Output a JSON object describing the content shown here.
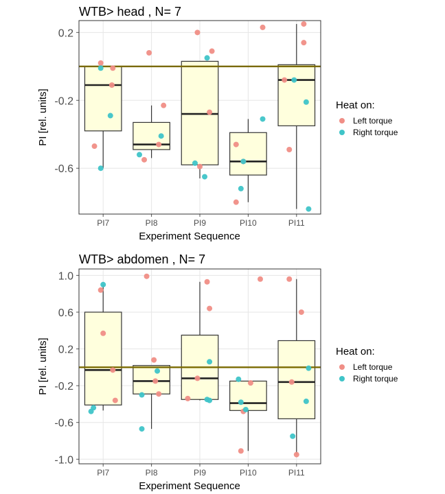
{
  "colors": {
    "left_torque": "#F08E86",
    "right_torque": "#3FC4C8",
    "box_fill": "#FFFFDD",
    "box_stroke": "#333333",
    "reference_line": "#7A6A00",
    "grid": "#E6E6E6"
  },
  "legend": {
    "title": "Heat on:",
    "items": [
      "Left torque",
      "Right torque"
    ]
  },
  "chart_data": [
    {
      "type": "box",
      "title": "WTB> head , N= 7",
      "xlabel": "Experiment Sequence",
      "ylabel": "PI [rel. units]",
      "categories": [
        "PI7",
        "PI8",
        "PI9",
        "PI10",
        "PI11"
      ],
      "ylim": [
        -0.87,
        0.27
      ],
      "yticks": [
        0.2,
        -0.2,
        -0.6
      ],
      "ytick_labels": [
        "0.2",
        "-0.2",
        "-0.6"
      ],
      "reference_line": 0,
      "grid": true,
      "legend_position": "right",
      "boxes": [
        {
          "category": "PI7",
          "whisker_low": -0.6,
          "q1": -0.38,
          "median": -0.11,
          "q3": 0.0,
          "whisker_high": 0.0
        },
        {
          "category": "PI8",
          "whisker_low": -0.54,
          "q1": -0.49,
          "median": -0.46,
          "q3": -0.33,
          "whisker_high": -0.23
        },
        {
          "category": "PI9",
          "whisker_low": -0.66,
          "q1": -0.58,
          "median": -0.28,
          "q3": 0.03,
          "whisker_high": 0.03
        },
        {
          "category": "PI10",
          "whisker_low": -0.8,
          "q1": -0.64,
          "median": -0.56,
          "q3": -0.39,
          "whisker_high": -0.31
        },
        {
          "category": "PI11",
          "whisker_low": -0.84,
          "q1": -0.35,
          "median": -0.08,
          "q3": 0.01,
          "whisker_high": 0.25
        }
      ],
      "points": [
        {
          "category": "PI7",
          "offset": -0.05,
          "value": 0.02,
          "series": "Left torque"
        },
        {
          "category": "PI7",
          "offset": 0.2,
          "value": -0.01,
          "series": "Left torque"
        },
        {
          "category": "PI7",
          "offset": 0.18,
          "value": -0.11,
          "series": "Left torque"
        },
        {
          "category": "PI7",
          "offset": -0.18,
          "value": -0.47,
          "series": "Left torque"
        },
        {
          "category": "PI7",
          "offset": -0.05,
          "value": -0.01,
          "series": "Right torque"
        },
        {
          "category": "PI7",
          "offset": 0.15,
          "value": -0.29,
          "series": "Right torque"
        },
        {
          "category": "PI7",
          "offset": -0.05,
          "value": -0.6,
          "series": "Right torque"
        },
        {
          "category": "PI8",
          "offset": -0.05,
          "value": 0.08,
          "series": "Left torque"
        },
        {
          "category": "PI8",
          "offset": 0.25,
          "value": -0.23,
          "series": "Left torque"
        },
        {
          "category": "PI8",
          "offset": 0.15,
          "value": -0.46,
          "series": "Left torque"
        },
        {
          "category": "PI8",
          "offset": -0.15,
          "value": -0.55,
          "series": "Left torque"
        },
        {
          "category": "PI8",
          "offset": 0.2,
          "value": -0.41,
          "series": "Right torque"
        },
        {
          "category": "PI8",
          "offset": -0.25,
          "value": -0.52,
          "series": "Right torque"
        },
        {
          "category": "PI9",
          "offset": -0.05,
          "value": 0.2,
          "series": "Left torque"
        },
        {
          "category": "PI9",
          "offset": 0.25,
          "value": 0.09,
          "series": "Left torque"
        },
        {
          "category": "PI9",
          "offset": 0.2,
          "value": -0.27,
          "series": "Left torque"
        },
        {
          "category": "PI9",
          "offset": 0.0,
          "value": -0.59,
          "series": "Left torque"
        },
        {
          "category": "PI9",
          "offset": 0.15,
          "value": 0.05,
          "series": "Right torque"
        },
        {
          "category": "PI9",
          "offset": -0.1,
          "value": -0.57,
          "series": "Right torque"
        },
        {
          "category": "PI9",
          "offset": 0.1,
          "value": -0.65,
          "series": "Right torque"
        },
        {
          "category": "PI10",
          "offset": 0.3,
          "value": 0.23,
          "series": "Left torque"
        },
        {
          "category": "PI10",
          "offset": -0.25,
          "value": -0.46,
          "series": "Left torque"
        },
        {
          "category": "PI10",
          "offset": -0.1,
          "value": -0.56,
          "series": "Left torque"
        },
        {
          "category": "PI10",
          "offset": -0.25,
          "value": -0.8,
          "series": "Left torque"
        },
        {
          "category": "PI10",
          "offset": 0.3,
          "value": -0.31,
          "series": "Right torque"
        },
        {
          "category": "PI10",
          "offset": -0.1,
          "value": -0.56,
          "series": "Right torque"
        },
        {
          "category": "PI10",
          "offset": -0.15,
          "value": -0.72,
          "series": "Right torque"
        },
        {
          "category": "PI11",
          "offset": 0.15,
          "value": 0.25,
          "series": "Left torque"
        },
        {
          "category": "PI11",
          "offset": 0.15,
          "value": 0.14,
          "series": "Left torque"
        },
        {
          "category": "PI11",
          "offset": -0.25,
          "value": -0.08,
          "series": "Left torque"
        },
        {
          "category": "PI11",
          "offset": -0.15,
          "value": -0.49,
          "series": "Left torque"
        },
        {
          "category": "PI11",
          "offset": -0.05,
          "value": -0.08,
          "series": "Right torque"
        },
        {
          "category": "PI11",
          "offset": 0.2,
          "value": -0.21,
          "series": "Right torque"
        },
        {
          "category": "PI11",
          "offset": 0.25,
          "value": -0.84,
          "series": "Right torque"
        }
      ]
    },
    {
      "type": "box",
      "title": "WTB> abdomen , N= 7",
      "xlabel": "Experiment Sequence",
      "ylabel": "PI [rel. units]",
      "categories": [
        "PI7",
        "PI8",
        "PI9",
        "PI10",
        "PI11"
      ],
      "ylim": [
        -1.05,
        1.07
      ],
      "yticks": [
        1.0,
        0.6,
        0.2,
        -0.2,
        -0.6,
        -1.0
      ],
      "ytick_labels": [
        "1.0",
        "0.6",
        "0.2",
        "-0.2",
        "-0.6",
        "-1.0"
      ],
      "reference_line": 0,
      "grid": true,
      "legend_position": "right",
      "boxes": [
        {
          "category": "PI7",
          "whisker_low": -0.47,
          "q1": -0.41,
          "median": -0.03,
          "q3": 0.6,
          "whisker_high": 0.9
        },
        {
          "category": "PI8",
          "whisker_low": -0.67,
          "q1": -0.29,
          "median": -0.15,
          "q3": 0.02,
          "whisker_high": 0.02
        },
        {
          "category": "PI9",
          "whisker_low": -0.36,
          "q1": -0.35,
          "median": -0.12,
          "q3": 0.35,
          "whisker_high": 0.93
        },
        {
          "category": "PI10",
          "whisker_low": -0.91,
          "q1": -0.47,
          "median": -0.39,
          "q3": -0.15,
          "whisker_high": -0.15
        },
        {
          "category": "PI11",
          "whisker_low": -0.95,
          "q1": -0.56,
          "median": -0.16,
          "q3": 0.29,
          "whisker_high": 0.96
        }
      ],
      "points": [
        {
          "category": "PI7",
          "offset": -0.05,
          "value": 0.84,
          "series": "Left torque"
        },
        {
          "category": "PI7",
          "offset": 0.0,
          "value": 0.37,
          "series": "Left torque"
        },
        {
          "category": "PI7",
          "offset": 0.2,
          "value": -0.03,
          "series": "Left torque"
        },
        {
          "category": "PI7",
          "offset": 0.25,
          "value": -0.36,
          "series": "Left torque"
        },
        {
          "category": "PI7",
          "offset": 0.0,
          "value": 0.9,
          "series": "Right torque"
        },
        {
          "category": "PI7",
          "offset": -0.2,
          "value": -0.44,
          "series": "Right torque"
        },
        {
          "category": "PI7",
          "offset": -0.25,
          "value": -0.48,
          "series": "Right torque"
        },
        {
          "category": "PI8",
          "offset": -0.1,
          "value": 0.99,
          "series": "Left torque"
        },
        {
          "category": "PI8",
          "offset": 0.05,
          "value": 0.08,
          "series": "Left torque"
        },
        {
          "category": "PI8",
          "offset": 0.08,
          "value": -0.15,
          "series": "Left torque"
        },
        {
          "category": "PI8",
          "offset": 0.15,
          "value": -0.29,
          "series": "Left torque"
        },
        {
          "category": "PI8",
          "offset": 0.12,
          "value": -0.04,
          "series": "Right torque"
        },
        {
          "category": "PI8",
          "offset": -0.2,
          "value": -0.3,
          "series": "Right torque"
        },
        {
          "category": "PI8",
          "offset": -0.2,
          "value": -0.67,
          "series": "Right torque"
        },
        {
          "category": "PI9",
          "offset": 0.15,
          "value": 0.93,
          "series": "Left torque"
        },
        {
          "category": "PI9",
          "offset": 0.2,
          "value": 0.64,
          "series": "Left torque"
        },
        {
          "category": "PI9",
          "offset": -0.05,
          "value": -0.12,
          "series": "Left torque"
        },
        {
          "category": "PI9",
          "offset": -0.25,
          "value": -0.34,
          "series": "Left torque"
        },
        {
          "category": "PI9",
          "offset": 0.2,
          "value": 0.06,
          "series": "Right torque"
        },
        {
          "category": "PI9",
          "offset": 0.15,
          "value": -0.35,
          "series": "Right torque"
        },
        {
          "category": "PI9",
          "offset": 0.2,
          "value": -0.36,
          "series": "Right torque"
        },
        {
          "category": "PI10",
          "offset": 0.25,
          "value": 0.96,
          "series": "Left torque"
        },
        {
          "category": "PI10",
          "offset": 0.05,
          "value": -0.17,
          "series": "Left torque"
        },
        {
          "category": "PI10",
          "offset": -0.1,
          "value": -0.48,
          "series": "Left torque"
        },
        {
          "category": "PI10",
          "offset": -0.15,
          "value": -0.91,
          "series": "Left torque"
        },
        {
          "category": "PI10",
          "offset": -0.2,
          "value": -0.13,
          "series": "Right torque"
        },
        {
          "category": "PI10",
          "offset": -0.15,
          "value": -0.38,
          "series": "Right torque"
        },
        {
          "category": "PI10",
          "offset": -0.05,
          "value": -0.46,
          "series": "Right torque"
        },
        {
          "category": "PI11",
          "offset": -0.15,
          "value": 0.96,
          "series": "Left torque"
        },
        {
          "category": "PI11",
          "offset": 0.1,
          "value": 0.6,
          "series": "Left torque"
        },
        {
          "category": "PI11",
          "offset": -0.1,
          "value": -0.16,
          "series": "Left torque"
        },
        {
          "category": "PI11",
          "offset": 0.0,
          "value": -0.95,
          "series": "Left torque"
        },
        {
          "category": "PI11",
          "offset": 0.25,
          "value": -0.01,
          "series": "Right torque"
        },
        {
          "category": "PI11",
          "offset": 0.2,
          "value": -0.37,
          "series": "Right torque"
        },
        {
          "category": "PI11",
          "offset": -0.08,
          "value": -0.75,
          "series": "Right torque"
        }
      ]
    }
  ]
}
